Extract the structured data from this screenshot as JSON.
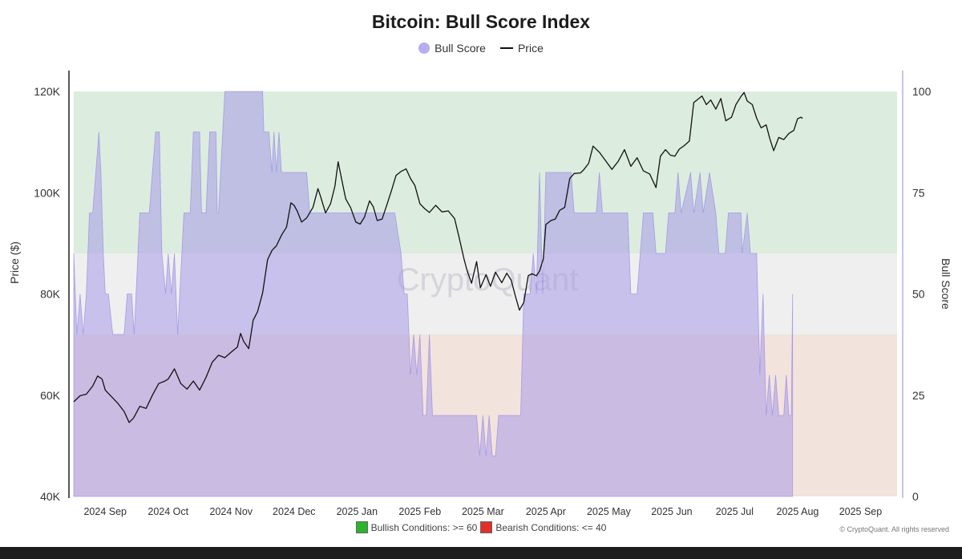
{
  "chart_data": {
    "type": "area",
    "title": "Bitcoin: Bull Score Index",
    "legend": [
      {
        "name": "Bull Score",
        "marker": "dot",
        "color": "#b7adf0"
      },
      {
        "name": "Price",
        "marker": "line",
        "color": "#111111"
      }
    ],
    "legend_position": "top-center",
    "y_left": {
      "label": "Price ($)",
      "ylim": [
        40000,
        120000
      ],
      "ticks": [
        "40K",
        "60K",
        "80K",
        "100K",
        "120K"
      ]
    },
    "y_right": {
      "label": "Bull Score",
      "ylim": [
        0,
        100
      ],
      "ticks": [
        "0",
        "25",
        "50",
        "75",
        "100"
      ]
    },
    "x_ticks": [
      "2024 Sep",
      "2024 Oct",
      "2024 Nov",
      "2024 Dec",
      "2025 Jan",
      "2025 Feb",
      "2025 Mar",
      "2025 Apr",
      "2025 May",
      "2025 Jun",
      "2025 Jul",
      "2025 Aug",
      "2025 Sep"
    ],
    "x_range_months": [
      -0.5,
      12.58
    ],
    "bands": [
      {
        "name": "bullish",
        "from": 60,
        "to": 100,
        "color": "#dcecdf"
      },
      {
        "name": "neutral",
        "from": 40,
        "to": 60,
        "color": "#efefef"
      },
      {
        "name": "bearish",
        "from": 0,
        "to": 40,
        "color": "#f3e3dd"
      }
    ],
    "watermark": "CryptoQuant",
    "series": [
      {
        "name": "Bull Score",
        "axis": "right",
        "color": "#a79ae8",
        "points": [
          [
            -0.5,
            60
          ],
          [
            -0.45,
            40
          ],
          [
            -0.4,
            50
          ],
          [
            -0.35,
            40
          ],
          [
            -0.3,
            50
          ],
          [
            -0.25,
            70
          ],
          [
            -0.2,
            70
          ],
          [
            -0.15,
            80
          ],
          [
            -0.1,
            90
          ],
          [
            -0.07,
            80
          ],
          [
            -0.03,
            60
          ],
          [
            0.0,
            50
          ],
          [
            0.05,
            50
          ],
          [
            0.12,
            40
          ],
          [
            0.2,
            40
          ],
          [
            0.3,
            40
          ],
          [
            0.35,
            50
          ],
          [
            0.42,
            50
          ],
          [
            0.46,
            40
          ],
          [
            0.55,
            70
          ],
          [
            0.7,
            70
          ],
          [
            0.75,
            80
          ],
          [
            0.8,
            90
          ],
          [
            0.86,
            90
          ],
          [
            0.9,
            60
          ],
          [
            0.96,
            50
          ],
          [
            1.0,
            60
          ],
          [
            1.05,
            50
          ],
          [
            1.1,
            60
          ],
          [
            1.15,
            40
          ],
          [
            1.25,
            70
          ],
          [
            1.35,
            70
          ],
          [
            1.4,
            90
          ],
          [
            1.5,
            90
          ],
          [
            1.53,
            70
          ],
          [
            1.6,
            70
          ],
          [
            1.66,
            90
          ],
          [
            1.76,
            90
          ],
          [
            1.78,
            70
          ],
          [
            1.8,
            70
          ],
          [
            1.9,
            100
          ],
          [
            2.0,
            100
          ],
          [
            2.5,
            100
          ],
          [
            2.52,
            90
          ],
          [
            2.6,
            90
          ],
          [
            2.65,
            80
          ],
          [
            2.68,
            90
          ],
          [
            2.72,
            80
          ],
          [
            2.76,
            90
          ],
          [
            2.8,
            80
          ],
          [
            2.9,
            80
          ],
          [
            3.2,
            80
          ],
          [
            3.25,
            70
          ],
          [
            4.6,
            70
          ],
          [
            4.7,
            60
          ],
          [
            4.75,
            50
          ],
          [
            4.8,
            50
          ],
          [
            4.85,
            30
          ],
          [
            4.9,
            40
          ],
          [
            4.95,
            30
          ],
          [
            5.0,
            40
          ],
          [
            5.05,
            20
          ],
          [
            5.1,
            20
          ],
          [
            5.15,
            40
          ],
          [
            5.2,
            20
          ],
          [
            5.5,
            20
          ],
          [
            5.8,
            20
          ],
          [
            5.9,
            20
          ],
          [
            5.95,
            10
          ],
          [
            6.0,
            20
          ],
          [
            6.05,
            10
          ],
          [
            6.1,
            20
          ],
          [
            6.15,
            10
          ],
          [
            6.2,
            10
          ],
          [
            6.25,
            20
          ],
          [
            6.6,
            20
          ],
          [
            6.65,
            50
          ],
          [
            6.75,
            50
          ],
          [
            6.8,
            60
          ],
          [
            6.85,
            50
          ],
          [
            6.9,
            80
          ],
          [
            6.95,
            50
          ],
          [
            7.0,
            80
          ],
          [
            7.3,
            80
          ],
          [
            7.35,
            80
          ],
          [
            7.4,
            80
          ],
          [
            7.45,
            70
          ],
          [
            7.8,
            70
          ],
          [
            7.85,
            80
          ],
          [
            7.9,
            70
          ],
          [
            8.3,
            70
          ],
          [
            8.35,
            50
          ],
          [
            8.45,
            50
          ],
          [
            8.55,
            70
          ],
          [
            8.7,
            70
          ],
          [
            8.75,
            60
          ],
          [
            8.9,
            60
          ],
          [
            8.95,
            70
          ],
          [
            9.05,
            70
          ],
          [
            9.1,
            80
          ],
          [
            9.15,
            70
          ],
          [
            9.3,
            80
          ],
          [
            9.35,
            70
          ],
          [
            9.45,
            80
          ],
          [
            9.5,
            70
          ],
          [
            9.6,
            80
          ],
          [
            9.7,
            70
          ],
          [
            9.75,
            60
          ],
          [
            9.85,
            60
          ],
          [
            9.9,
            70
          ],
          [
            10.1,
            70
          ],
          [
            10.12,
            60
          ],
          [
            10.2,
            70
          ],
          [
            10.25,
            60
          ],
          [
            10.35,
            60
          ],
          [
            10.4,
            30
          ],
          [
            10.45,
            50
          ],
          [
            10.5,
            20
          ],
          [
            10.55,
            30
          ],
          [
            10.6,
            20
          ],
          [
            10.65,
            30
          ],
          [
            10.7,
            20
          ],
          [
            10.78,
            20
          ],
          [
            10.82,
            30
          ],
          [
            10.86,
            20
          ],
          [
            10.9,
            20
          ],
          [
            10.92,
            50
          ]
        ]
      },
      {
        "name": "Price",
        "axis": "left",
        "color": "#111111",
        "points": [
          [
            -0.5,
            58700
          ],
          [
            -0.4,
            59900
          ],
          [
            -0.3,
            60200
          ],
          [
            -0.2,
            61800
          ],
          [
            -0.12,
            63800
          ],
          [
            -0.05,
            63200
          ],
          [
            0.0,
            61000
          ],
          [
            0.1,
            59700
          ],
          [
            0.2,
            58400
          ],
          [
            0.3,
            56800
          ],
          [
            0.38,
            54600
          ],
          [
            0.45,
            55500
          ],
          [
            0.55,
            57800
          ],
          [
            0.65,
            57400
          ],
          [
            0.75,
            60000
          ],
          [
            0.85,
            62300
          ],
          [
            0.95,
            62800
          ],
          [
            1.0,
            63200
          ],
          [
            1.1,
            65200
          ],
          [
            1.2,
            62300
          ],
          [
            1.3,
            61200
          ],
          [
            1.4,
            62800
          ],
          [
            1.5,
            61000
          ],
          [
            1.6,
            63500
          ],
          [
            1.7,
            66500
          ],
          [
            1.8,
            67900
          ],
          [
            1.9,
            67400
          ],
          [
            2.0,
            68500
          ],
          [
            2.1,
            69500
          ],
          [
            2.15,
            72200
          ],
          [
            2.2,
            70600
          ],
          [
            2.28,
            69200
          ],
          [
            2.35,
            74800
          ],
          [
            2.42,
            76500
          ],
          [
            2.5,
            80200
          ],
          [
            2.58,
            86800
          ],
          [
            2.65,
            88600
          ],
          [
            2.72,
            89500
          ],
          [
            2.8,
            91600
          ],
          [
            2.88,
            93200
          ],
          [
            2.95,
            98000
          ],
          [
            3.0,
            97500
          ],
          [
            3.05,
            96400
          ],
          [
            3.12,
            94200
          ],
          [
            3.2,
            95000
          ],
          [
            3.3,
            97100
          ],
          [
            3.38,
            100800
          ],
          [
            3.42,
            99300
          ],
          [
            3.5,
            96000
          ],
          [
            3.58,
            97800
          ],
          [
            3.65,
            101300
          ],
          [
            3.7,
            106100
          ],
          [
            3.76,
            102400
          ],
          [
            3.82,
            98800
          ],
          [
            3.9,
            97000
          ],
          [
            3.98,
            94200
          ],
          [
            4.05,
            93800
          ],
          [
            4.12,
            95200
          ],
          [
            4.2,
            98400
          ],
          [
            4.26,
            97200
          ],
          [
            4.32,
            94500
          ],
          [
            4.4,
            94800
          ],
          [
            4.48,
            97800
          ],
          [
            4.55,
            100500
          ],
          [
            4.62,
            103400
          ],
          [
            4.7,
            104200
          ],
          [
            4.78,
            104700
          ],
          [
            4.85,
            102800
          ],
          [
            4.92,
            101400
          ],
          [
            5.0,
            97800
          ],
          [
            5.08,
            96800
          ],
          [
            5.15,
            96100
          ],
          [
            5.25,
            97500
          ],
          [
            5.35,
            96200
          ],
          [
            5.45,
            96400
          ],
          [
            5.55,
            94900
          ],
          [
            5.62,
            91300
          ],
          [
            5.7,
            86900
          ],
          [
            5.75,
            84600
          ],
          [
            5.82,
            82100
          ],
          [
            5.9,
            86400
          ],
          [
            5.96,
            81200
          ],
          [
            6.05,
            83800
          ],
          [
            6.12,
            81500
          ],
          [
            6.2,
            84300
          ],
          [
            6.3,
            82200
          ],
          [
            6.38,
            84100
          ],
          [
            6.45,
            82700
          ],
          [
            6.52,
            79400
          ],
          [
            6.58,
            76800
          ],
          [
            6.65,
            78300
          ],
          [
            6.72,
            83600
          ],
          [
            6.78,
            84000
          ],
          [
            6.85,
            83600
          ],
          [
            6.9,
            84500
          ],
          [
            6.96,
            86900
          ],
          [
            7.0,
            93700
          ],
          [
            7.08,
            94500
          ],
          [
            7.15,
            94800
          ],
          [
            7.22,
            96500
          ],
          [
            7.3,
            97100
          ],
          [
            7.38,
            102800
          ],
          [
            7.45,
            103800
          ],
          [
            7.55,
            103900
          ],
          [
            7.6,
            104500
          ],
          [
            7.68,
            105800
          ],
          [
            7.75,
            109200
          ],
          [
            7.85,
            108000
          ],
          [
            7.95,
            106300
          ],
          [
            8.05,
            104600
          ],
          [
            8.15,
            106200
          ],
          [
            8.25,
            108500
          ],
          [
            8.35,
            105200
          ],
          [
            8.45,
            106900
          ],
          [
            8.55,
            104300
          ],
          [
            8.65,
            103700
          ],
          [
            8.75,
            101000
          ],
          [
            8.82,
            107200
          ],
          [
            8.9,
            108500
          ],
          [
            8.98,
            107400
          ],
          [
            9.05,
            107200
          ],
          [
            9.12,
            108600
          ],
          [
            9.2,
            109300
          ],
          [
            9.28,
            110200
          ],
          [
            9.35,
            117800
          ],
          [
            9.42,
            118500
          ],
          [
            9.48,
            119100
          ],
          [
            9.55,
            117400
          ],
          [
            9.62,
            118300
          ],
          [
            9.7,
            116500
          ],
          [
            9.78,
            118600
          ],
          [
            9.86,
            114200
          ],
          [
            9.95,
            114900
          ],
          [
            10.02,
            117400
          ],
          [
            10.1,
            119000
          ],
          [
            10.15,
            119800
          ],
          [
            10.2,
            118100
          ],
          [
            10.28,
            117400
          ],
          [
            10.35,
            114700
          ],
          [
            10.42,
            112800
          ],
          [
            10.5,
            113400
          ],
          [
            10.56,
            110600
          ],
          [
            10.62,
            108300
          ],
          [
            10.7,
            110900
          ],
          [
            10.78,
            110500
          ],
          [
            10.86,
            111700
          ],
          [
            10.94,
            112300
          ],
          [
            11.0,
            114600
          ],
          [
            11.05,
            114900
          ],
          [
            11.08,
            114700
          ]
        ]
      }
    ],
    "footnote": {
      "bullish": {
        "label": "Bullish Conditions: >= 60",
        "color": "#2bb52b"
      },
      "bearish": {
        "label": "Bearish Conditions: <= 40",
        "color": "#e0302a"
      }
    },
    "credit": "© CryptoQuant. All rights reserved"
  }
}
